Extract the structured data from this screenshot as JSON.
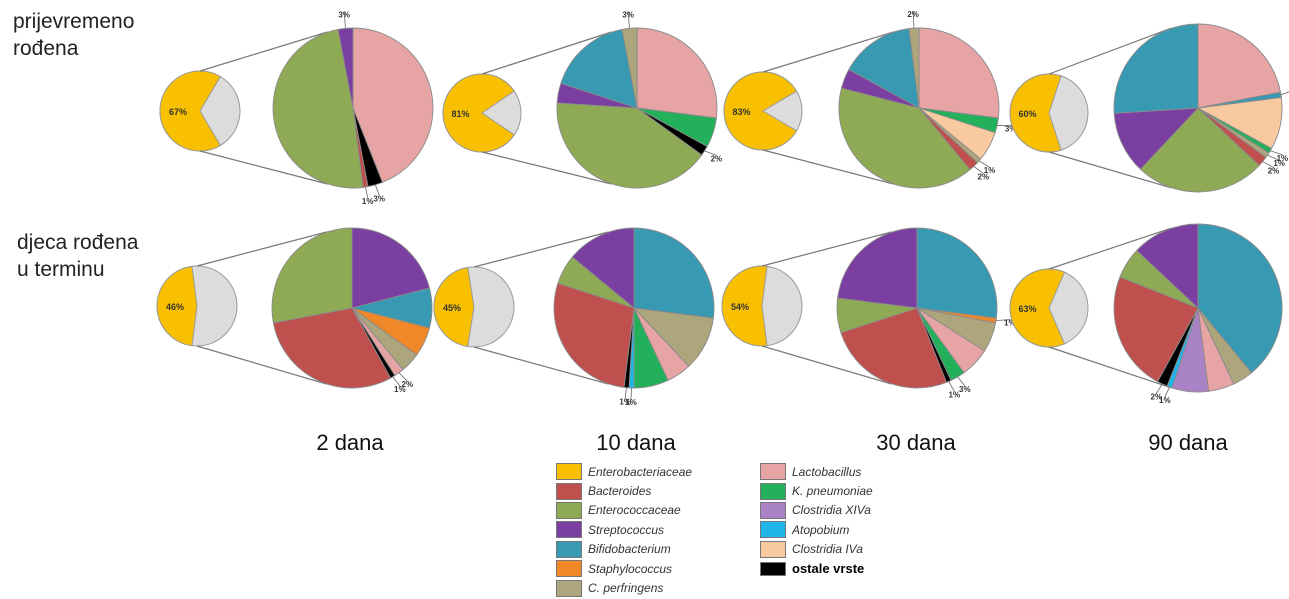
{
  "row_labels": {
    "preterm": [
      "prijevremeno",
      "rođena"
    ],
    "term": [
      "djeca rođena",
      "u terminu"
    ]
  },
  "days": [
    "2 dana",
    "10 dana",
    "30 dana",
    "90 dana"
  ],
  "colors": {
    "Enterobacteriaceae": "#f8c000",
    "Bacteroides": "#c0504d",
    "Enterococcaceae": "#8faa55",
    "Streptococcus": "#7b3fa2",
    "Bifidobacterium": "#3799b2",
    "Staphylococcus": "#f0882a",
    "C. perfringens": "#ada57c",
    "Lactobacillus": "#e6a4a4",
    "K. pneumoniae": "#22b05a",
    "Clostridia XIVa": "#a983c5",
    "Atopobium": "#1fb5e8",
    "Clostridia IVa": "#f9c9a0",
    "ostale vrste": "#000000",
    "rest": "#dcdcdc"
  },
  "legend": {
    "col1": [
      "Enterobacteriaceae",
      "Bacteroides",
      "Enterococcaceae",
      "Streptococcus",
      "Bifidobacterium",
      "Staphylococcus",
      "C. perfringens"
    ],
    "col2": [
      "Lactobacillus",
      "K. pneumoniae",
      "Clostridia XIVa",
      "Atopobium",
      "Clostridia IVa",
      "ostale vrste"
    ]
  },
  "chart_data": [
    {
      "type": "pie",
      "group": "prijevremeno rođena",
      "day": "2 dana",
      "small_pie": {
        "Enterobacteriaceae": 67
      },
      "small_label": "67%",
      "slices": [
        {
          "category": "Lactobacillus",
          "value": 44,
          "label": "44%"
        },
        {
          "category": "ostale vrste",
          "value": 3,
          "label": "3%"
        },
        {
          "category": "Bacteroides",
          "value": 1,
          "label": "1%"
        },
        {
          "category": "Enterococcaceae",
          "value": 49,
          "label": "49%"
        },
        {
          "category": "Streptococcus",
          "value": 3,
          "label": "3%"
        }
      ]
    },
    {
      "type": "pie",
      "group": "prijevremeno rođena",
      "day": "10 dana",
      "small_pie": {
        "Enterobacteriaceae": 81
      },
      "small_label": "81%",
      "slices": [
        {
          "category": "Lactobacillus",
          "value": 27,
          "label": "27%"
        },
        {
          "category": "K. pneumoniae",
          "value": 6,
          "label": "6%"
        },
        {
          "category": "ostale vrste",
          "value": 2,
          "label": "2%"
        },
        {
          "category": "Enterococcaceae",
          "value": 41,
          "label": "41%"
        },
        {
          "category": "Streptococcus",
          "value": 4,
          "label": "4%"
        },
        {
          "category": "Bifidobacterium",
          "value": 17,
          "label": "17%"
        },
        {
          "category": "C. perfringens",
          "value": 3,
          "label": "3%"
        }
      ]
    },
    {
      "type": "pie",
      "group": "prijevremeno rođena",
      "day": "30 dana",
      "small_pie": {
        "Enterobacteriaceae": 83
      },
      "small_label": "83%",
      "slices": [
        {
          "category": "Lactobacillus",
          "value": 27,
          "label": "27%"
        },
        {
          "category": "K. pneumoniae",
          "value": 3,
          "label": "3%"
        },
        {
          "category": "Clostridia IVa",
          "value": 6,
          "label": "6%"
        },
        {
          "category": "C. perfringens",
          "value": 1,
          "label": "1%"
        },
        {
          "category": "Bacteroides",
          "value": 2,
          "label": "2%"
        },
        {
          "category": "Enterococcaceae",
          "value": 40,
          "label": "40%"
        },
        {
          "category": "Streptococcus",
          "value": 4,
          "label": "4%"
        },
        {
          "category": "Bifidobacterium",
          "value": 15,
          "label": "15%"
        },
        {
          "category": "C. perfringens",
          "value": 2,
          "label": "2%"
        }
      ]
    },
    {
      "type": "pie",
      "group": "prijevremeno rođena",
      "day": "90 dana",
      "small_pie": {
        "Enterobacteriaceae": 60
      },
      "small_label": "60%",
      "slices": [
        {
          "category": "Lactobacillus",
          "value": 22,
          "label": "22%"
        },
        {
          "category": "Bifidobacterium",
          "value": 1,
          "label": "1%"
        },
        {
          "category": "Clostridia IVa",
          "value": 10,
          "label": "10%"
        },
        {
          "category": "K. pneumoniae",
          "value": 1,
          "label": "1%"
        },
        {
          "category": "C. perfringens",
          "value": 1,
          "label": "1%"
        },
        {
          "category": "Bacteroides",
          "value": 2,
          "label": "2%"
        },
        {
          "category": "Enterococcaceae",
          "value": 25,
          "label": "25%"
        },
        {
          "category": "Streptococcus",
          "value": 12,
          "label": "12%"
        },
        {
          "category": "Bifidobacterium",
          "value": 26,
          "label": "26%"
        }
      ]
    },
    {
      "type": "pie",
      "group": "djeca rođena u terminu",
      "day": "2 dana",
      "small_pie": {
        "Enterobacteriaceae": 46
      },
      "small_label": "46%",
      "slices": [
        {
          "category": "Streptococcus",
          "value": 21,
          "label": "21%"
        },
        {
          "category": "Bifidobacterium",
          "value": 8,
          "label": "8%"
        },
        {
          "category": "Staphylococcus",
          "value": 6,
          "label": "6%"
        },
        {
          "category": "C. perfringens",
          "value": 4,
          "label": "4%"
        },
        {
          "category": "Lactobacillus",
          "value": 2,
          "label": "2%"
        },
        {
          "category": "ostale vrste",
          "value": 1,
          "label": "1%"
        },
        {
          "category": "Bacteroides",
          "value": 30,
          "label": "30%"
        },
        {
          "category": "Enterococcaceae",
          "value": 28,
          "label": "28%"
        }
      ]
    },
    {
      "type": "pie",
      "group": "djeca rođena u terminu",
      "day": "10 dana",
      "small_pie": {
        "Enterobacteriaceae": 45
      },
      "small_label": "45%",
      "slices": [
        {
          "category": "Bifidobacterium",
          "value": 27,
          "label": "27%"
        },
        {
          "category": "C. perfringens",
          "value": 11,
          "label": "11%"
        },
        {
          "category": "Lactobacillus",
          "value": 5,
          "label": "5%"
        },
        {
          "category": "K. pneumoniae",
          "value": 7,
          "label": "7%"
        },
        {
          "category": "Atopobium",
          "value": 1,
          "label": "1%"
        },
        {
          "category": "ostale vrste",
          "value": 1,
          "label": "1%"
        },
        {
          "category": "Bacteroides",
          "value": 28,
          "label": "28%"
        },
        {
          "category": "Enterococcaceae",
          "value": 6,
          "label": "6%"
        },
        {
          "category": "Streptococcus",
          "value": 14,
          "label": "14%"
        }
      ]
    },
    {
      "type": "pie",
      "group": "djeca rođena u terminu",
      "day": "30 dana",
      "small_pie": {
        "Enterobacteriaceae": 54
      },
      "small_label": "54%",
      "slices": [
        {
          "category": "Bifidobacterium",
          "value": 27,
          "label": "27%"
        },
        {
          "category": "Staphylococcus",
          "value": 1,
          "label": "1%"
        },
        {
          "category": "C. perfringens",
          "value": 6,
          "label": "6%"
        },
        {
          "category": "Lactobacillus",
          "value": 6,
          "label": "6%"
        },
        {
          "category": "K. pneumoniae",
          "value": 3,
          "label": "3%"
        },
        {
          "category": "ostale vrste",
          "value": 1,
          "label": "1%"
        },
        {
          "category": "Bacteroides",
          "value": 26,
          "label": "26%"
        },
        {
          "category": "Enterococcaceae",
          "value": 7,
          "label": "7%"
        },
        {
          "category": "Streptococcus",
          "value": 23,
          "label": "23%"
        }
      ]
    },
    {
      "type": "pie",
      "group": "djeca rođena u terminu",
      "day": "90 dana",
      "small_pie": {
        "Enterobacteriaceae": 63
      },
      "small_label": "63%",
      "slices": [
        {
          "category": "Bifidobacterium",
          "value": 39,
          "label": "39%"
        },
        {
          "category": "C. perfringens",
          "value": 4,
          "label": "4%"
        },
        {
          "category": "Lactobacillus",
          "value": 5,
          "label": "5%"
        },
        {
          "category": "Clostridia XIVa",
          "value": 7,
          "label": "7%"
        },
        {
          "category": "Atopobium",
          "value": 1,
          "label": "1%"
        },
        {
          "category": "ostale vrste",
          "value": 2,
          "label": "2%"
        },
        {
          "category": "Bacteroides",
          "value": 23,
          "label": "23%"
        },
        {
          "category": "Enterococcaceae",
          "value": 6,
          "label": "6%"
        },
        {
          "category": "Streptococcus",
          "value": 13,
          "label": "13%"
        }
      ]
    }
  ]
}
